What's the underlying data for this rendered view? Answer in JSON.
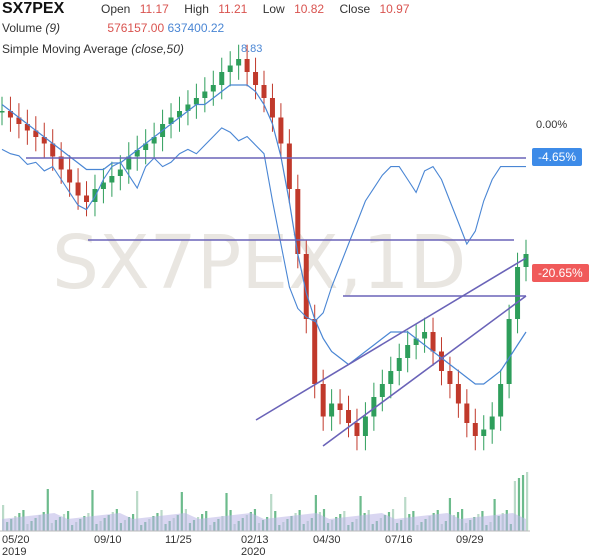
{
  "header": {
    "symbol": "SX7PEX",
    "open_label": "Open",
    "open_value": "11.17",
    "high_label": "High",
    "high_value": "11.21",
    "low_label": "Low",
    "low_value": "10.82",
    "close_label": "Close",
    "close_value": "10.97",
    "volume_label": "Volume",
    "volume_param": "(9)",
    "volume_value": "576157.00",
    "volume_avg_value": "637400.22",
    "sma_label": "Simple Moving Average",
    "sma_param": "(close,50)",
    "sma_value": "8.83"
  },
  "watermark": "SX7PEX,1D",
  "colors": {
    "up": "#2e9e5b",
    "down": "#c0392b",
    "indicator": "#4a86d4",
    "trendline": "#6a63b8",
    "badge_blue": "#3d8be8",
    "badge_red": "#f05a5a"
  },
  "chart_data": {
    "type": "candlestick",
    "x_ticks": [
      "05/20",
      "2019",
      "09/10",
      "11/25",
      "02/13",
      "2020",
      "04/30",
      "07/16",
      "09/29"
    ],
    "price_levels": [
      {
        "label": "0.00%",
        "style": "text"
      },
      {
        "label": "-4.65%",
        "style": "blue-badge"
      },
      {
        "label": "-20.65%",
        "style": "red-badge"
      }
    ],
    "sma_peak_label": "8.83",
    "close_series_pct": [
      2,
      1,
      0,
      -1,
      -2,
      -3,
      -5,
      -7,
      -9,
      -11,
      -12,
      -10,
      -9,
      -8,
      -7,
      -5,
      -4,
      -3,
      -2,
      0,
      1,
      2,
      3,
      4,
      5,
      6,
      8,
      9,
      10,
      8,
      6,
      4,
      1,
      -3,
      -10,
      -20,
      -30,
      -40,
      -45,
      -43,
      -44,
      -46,
      -48,
      -45,
      -42,
      -40,
      -38,
      -36,
      -34,
      -33,
      -32,
      -35,
      -38,
      -40,
      -43,
      -46,
      -48,
      -47,
      -45,
      -40,
      -30,
      -22,
      -20
    ],
    "sma_series_pct": [
      3,
      2,
      1,
      0,
      -1,
      -2,
      -3,
      -4,
      -5,
      -6,
      -7,
      -7,
      -7,
      -6,
      -6,
      -5,
      -4,
      -3,
      -2,
      -1,
      0,
      1,
      2,
      3,
      3,
      4,
      5,
      6,
      6,
      6,
      5,
      3,
      0,
      -5,
      -12,
      -20,
      -26,
      -30,
      -33,
      -35,
      -36,
      -37,
      -36,
      -35,
      -34,
      -33,
      -32,
      -32,
      -32,
      -33,
      -34,
      -35,
      -36,
      -37,
      -38,
      -39,
      -40,
      -40,
      -39,
      -38,
      -36,
      -34,
      -32
    ],
    "oscillator_series_pct": [
      4,
      2,
      1,
      -3,
      -2,
      -6,
      -4,
      -10,
      -16,
      -22,
      -24,
      -18,
      -10,
      -4,
      -2,
      -8,
      -14,
      -4,
      0,
      -4,
      -2,
      2,
      4,
      2,
      6,
      10,
      14,
      12,
      8,
      10,
      6,
      2,
      -20,
      -40,
      -60,
      -70,
      -74,
      -76,
      -72,
      -60,
      -50,
      -40,
      -30,
      -20,
      -14,
      -8,
      -4,
      -4,
      -10,
      -16,
      -6,
      -4,
      -10,
      -20,
      -30,
      -40,
      -34,
      -20,
      -10,
      -4,
      -4,
      -4,
      -4
    ]
  }
}
